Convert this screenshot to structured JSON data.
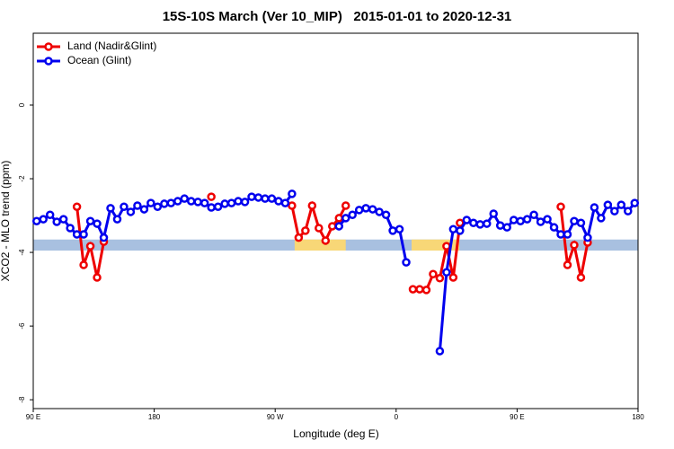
{
  "chart_data": {
    "type": "line",
    "title": "15S-10S March (Ver 10_MIP)   2015-01-01 to 2020-12-31",
    "x_label": "Longitude (deg E)",
    "y_label": "XCO2 - MLO trend (ppm)",
    "xlim": [
      90,
      540
    ],
    "ylim": [
      -8.24,
      1.95
    ],
    "xticks": [
      {
        "value": 90,
        "label": "90 E"
      },
      180,
      {
        "value": 270,
        "label": "90 W"
      },
      {
        "value": 360,
        "label": "0"
      },
      {
        "value": 450,
        "label": "90 E"
      },
      {
        "value": 540,
        "label": "180"
      }
    ],
    "yticks": [
      0,
      -2,
      -4,
      -6,
      -8
    ],
    "legend": "top-left",
    "band": {
      "ylim": [
        -3.95,
        -3.65
      ],
      "color": "#a8c0e0",
      "highlights": [
        [
          284.5,
          322.5
        ],
        [
          371.5,
          407
        ]
      ],
      "highlight_color": "#f8d777"
    },
    "x": [
      92.5,
      97.5,
      102.5,
      107.5,
      112.5,
      117.5,
      122.5,
      127.5,
      132.5,
      137.5,
      142.5,
      147.5,
      152.5,
      157.5,
      162.5,
      167.5,
      172.5,
      177.5,
      182.5,
      187.5,
      192.5,
      197.5,
      202.5,
      207.5,
      212.5,
      217.5,
      222.5,
      227.5,
      232.5,
      237.5,
      242.5,
      247.5,
      252.5,
      257.5,
      262.5,
      267.5,
      272.5,
      277.5,
      282.5,
      287.5,
      292.5,
      297.5,
      302.5,
      307.5,
      312.5,
      317.5,
      322.5,
      327.5,
      332.5,
      337.5,
      342.5,
      347.5,
      352.5,
      357.5,
      362.5,
      367.5,
      372.5,
      377.5,
      382.5,
      387.5,
      392.5,
      397.5,
      402.5,
      407.5,
      412.5,
      417.5,
      422.5,
      427.5,
      432.5,
      437.5,
      442.5,
      447.5,
      452.5,
      457.5,
      462.5,
      467.5,
      472.5,
      477.5,
      482.5,
      487.5,
      492.5,
      497.5,
      502.5,
      507.5,
      512.5,
      517.5,
      522.5,
      527.5,
      532.5,
      537.5
    ],
    "series": [
      {
        "name": "Land (Nadir&Glint)",
        "color": "#ee0000",
        "values": [
          null,
          null,
          null,
          null,
          null,
          null,
          -2.76,
          -4.34,
          -3.83,
          -4.68,
          -3.71,
          null,
          null,
          null,
          null,
          null,
          null,
          null,
          null,
          null,
          null,
          null,
          null,
          null,
          null,
          null,
          -2.49,
          null,
          null,
          null,
          null,
          null,
          null,
          null,
          null,
          null,
          null,
          null,
          -2.73,
          -3.6,
          -3.41,
          -2.73,
          -3.34,
          -3.68,
          -3.29,
          -3.07,
          -2.73,
          null,
          null,
          null,
          null,
          null,
          null,
          null,
          null,
          null,
          -5.0,
          -5.0,
          -5.02,
          -4.59,
          -4.7,
          -3.83,
          -4.68,
          -3.2,
          null,
          null,
          null,
          null,
          null,
          null,
          null,
          null,
          null,
          null,
          null,
          null,
          null,
          null,
          -2.76,
          -4.34,
          -3.8,
          -4.68,
          -3.73,
          null,
          null,
          null,
          null,
          null,
          null,
          null
        ]
      },
      {
        "name": "Ocean (Glint)",
        "color": "#0000ee",
        "values": [
          -3.15,
          -3.1,
          -2.98,
          -3.17,
          -3.1,
          -3.34,
          -3.51,
          -3.51,
          -3.15,
          -3.22,
          -3.6,
          -2.8,
          -3.1,
          -2.76,
          -2.9,
          -2.73,
          -2.83,
          -2.66,
          -2.76,
          -2.68,
          -2.66,
          -2.61,
          -2.54,
          -2.61,
          -2.63,
          -2.66,
          -2.78,
          -2.76,
          -2.68,
          -2.66,
          -2.61,
          -2.63,
          -2.49,
          -2.51,
          -2.54,
          -2.54,
          -2.61,
          -2.66,
          -2.41,
          null,
          null,
          null,
          null,
          null,
          null,
          -3.29,
          -3.07,
          -2.98,
          -2.85,
          -2.8,
          -2.83,
          -2.9,
          -2.98,
          -3.41,
          -3.37,
          -4.27,
          null,
          null,
          null,
          null,
          -6.68,
          -4.54,
          -3.37,
          -3.41,
          -3.12,
          -3.2,
          -3.24,
          -3.22,
          -2.95,
          -3.27,
          -3.32,
          -3.12,
          -3.15,
          -3.1,
          -2.98,
          -3.17,
          -3.1,
          -3.32,
          -3.51,
          -3.51,
          -3.15,
          -3.2,
          -3.6,
          -2.78,
          -3.07,
          -2.71,
          -2.88,
          -2.71,
          -2.88,
          -2.66
        ]
      }
    ]
  }
}
